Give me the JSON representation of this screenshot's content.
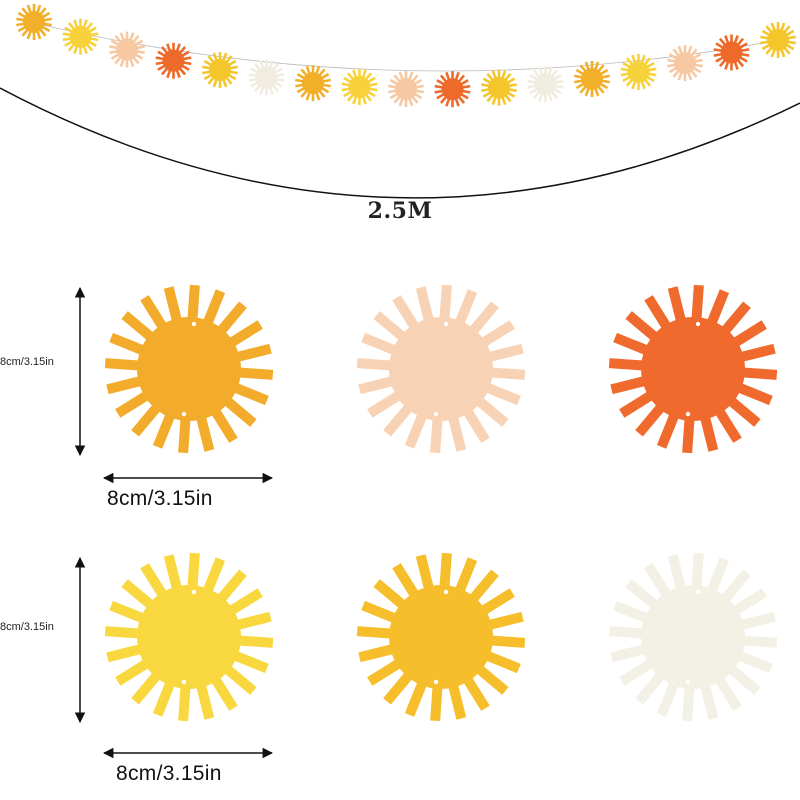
{
  "garland": {
    "length_label": "2.5M",
    "colors": [
      "#f2b02a",
      "#f8d23a",
      "#f6c9a3",
      "#ee6a2a",
      "#f5c52c",
      "#f1ece0",
      "#f2b02a",
      "#f8d23a",
      "#f6c9a3",
      "#ee6a2a",
      "#f5c52c",
      "#f1ece0",
      "#f2b02a",
      "#f8d23a",
      "#f6c9a3",
      "#ee6a2a",
      "#f5c52c"
    ]
  },
  "dimensions": {
    "height_label": "8cm/3.15in",
    "width_label": "8cm/3.15in"
  },
  "suns": [
    {
      "name": "mustard",
      "color": "#f2ab2a"
    },
    {
      "name": "peach",
      "color": "#f8d2b4"
    },
    {
      "name": "orange",
      "color": "#ef6a2c"
    },
    {
      "name": "lemon",
      "color": "#f8d83e"
    },
    {
      "name": "golden",
      "color": "#f6be2a"
    },
    {
      "name": "cream",
      "color": "#f3f0e6"
    }
  ]
}
